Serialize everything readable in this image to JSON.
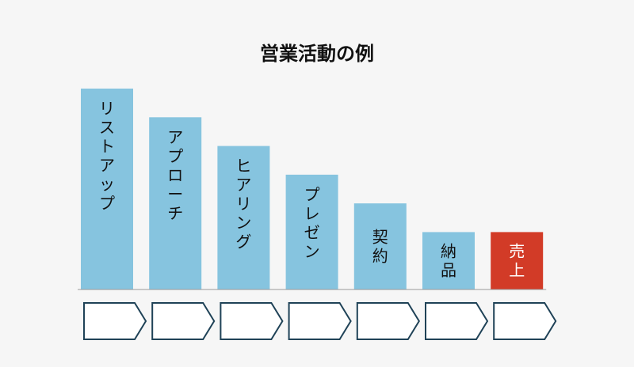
{
  "title": "営業活動の例",
  "colors": {
    "bar": "#86c4df",
    "highlight": "#d23b27",
    "arrow_stroke": "#1f4257",
    "arrow_fill": "#ffffff",
    "baseline": "#999999"
  },
  "chart_data": {
    "type": "bar",
    "categories": [
      "リストアップ",
      "アプローチ",
      "ヒアリング",
      "プレゼン",
      "契約",
      "納品",
      "売上"
    ],
    "values": [
      7,
      6,
      5,
      4,
      3,
      2,
      2
    ],
    "highlight": [
      false,
      false,
      false,
      false,
      false,
      false,
      true
    ],
    "ylim": [
      0,
      7
    ],
    "grid": false,
    "legend": "none"
  }
}
